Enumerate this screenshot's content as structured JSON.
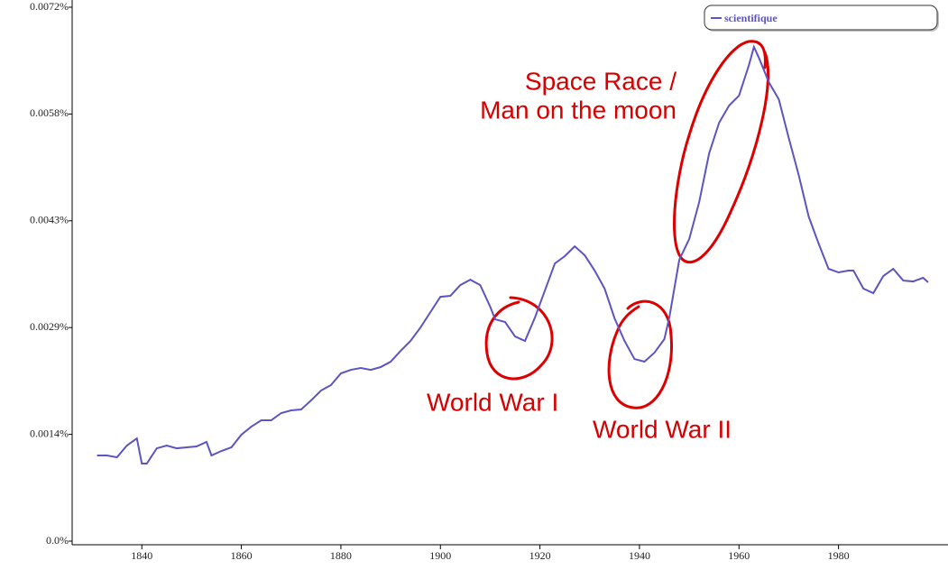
{
  "chart_data": {
    "type": "line",
    "x": [
      1831,
      1833,
      1835,
      1837,
      1839,
      1840,
      1841,
      1843,
      1845,
      1847,
      1849,
      1851,
      1853,
      1854,
      1856,
      1858,
      1860,
      1862,
      1864,
      1866,
      1868,
      1870,
      1872,
      1874,
      1876,
      1878,
      1880,
      1882,
      1884,
      1886,
      1888,
      1890,
      1892,
      1894,
      1896,
      1898,
      1900,
      1902,
      1904,
      1906,
      1908,
      1910,
      1911,
      1913,
      1915,
      1917,
      1919,
      1921,
      1923,
      1925,
      1927,
      1929,
      1931,
      1933,
      1935,
      1937,
      1939,
      1941,
      1943,
      1945,
      1946,
      1948,
      1950,
      1952,
      1954,
      1956,
      1958,
      1960,
      1962,
      1963,
      1964,
      1966,
      1968,
      1970,
      1972,
      1974,
      1976,
      1978,
      1980,
      1982,
      1983,
      1985,
      1987,
      1989,
      1991,
      1993,
      1995,
      1997,
      1998
    ],
    "series": [
      {
        "name": "scientifique",
        "color": "#5c54c0",
        "values": [
          0.001155,
          0.001155,
          0.001131,
          0.001289,
          0.001386,
          0.001046,
          0.001046,
          0.001252,
          0.001289,
          0.001252,
          0.001265,
          0.001277,
          0.001338,
          0.001155,
          0.001216,
          0.001265,
          0.001435,
          0.001544,
          0.001629,
          0.001629,
          0.001727,
          0.001763,
          0.001775,
          0.001897,
          0.002031,
          0.002104,
          0.002262,
          0.00231,
          0.002335,
          0.00231,
          0.002347,
          0.00242,
          0.002566,
          0.0027,
          0.002882,
          0.003089,
          0.003295,
          0.003308,
          0.003453,
          0.003526,
          0.003453,
          0.003162,
          0.002991,
          0.002955,
          0.00276,
          0.0027,
          0.003016,
          0.00338,
          0.003745,
          0.003843,
          0.003976,
          0.003855,
          0.003648,
          0.003405,
          0.003004,
          0.0027,
          0.002456,
          0.00242,
          0.002541,
          0.002724,
          0.003016,
          0.003794,
          0.004074,
          0.004572,
          0.005229,
          0.005642,
          0.005873,
          0.006007,
          0.00642,
          0.006664,
          0.006518,
          0.006189,
          0.005958,
          0.005436,
          0.004937,
          0.004378,
          0.004013,
          0.003672,
          0.003624,
          0.003648,
          0.003648,
          0.003405,
          0.003344,
          0.003575,
          0.003672,
          0.003514,
          0.003502,
          0.003551,
          0.00349
        ]
      }
    ],
    "xlim": [
      1826,
      2002
    ],
    "xticks": [
      1840,
      1860,
      1880,
      1900,
      1920,
      1940,
      1960,
      1980
    ],
    "ylim": [
      0,
      0.0072
    ],
    "yticks": [
      {
        "value": 0,
        "label": "0.0%"
      },
      {
        "value": 0.00144,
        "label": "0.0014%"
      },
      {
        "value": 0.00288,
        "label": "0.0029%"
      },
      {
        "value": 0.00432,
        "label": "0.0043%"
      },
      {
        "value": 0.00576,
        "label": "0.0058%"
      },
      {
        "value": 0.0072,
        "label": "0.0072%"
      }
    ],
    "annotations": [
      "Space Race /",
      "Man on the moon",
      "World War I",
      "World War II"
    ],
    "legend": "top-right",
    "grid": false
  }
}
